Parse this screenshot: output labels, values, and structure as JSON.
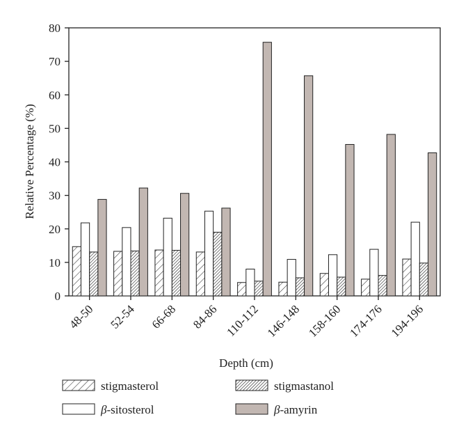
{
  "chart_data": {
    "type": "bar",
    "xlabel": "Depth (cm)",
    "ylabel": "Relative Percentage (%)",
    "ylim": [
      0,
      80
    ],
    "yticks": [
      0,
      10,
      20,
      30,
      40,
      50,
      60,
      70,
      80
    ],
    "categories": [
      "48-50",
      "52-54",
      "66-68",
      "84-86",
      "110-112",
      "146-148",
      "158-160",
      "174-176",
      "194-196"
    ],
    "series": [
      {
        "name": "stigmasterol",
        "fill": "sparse-hatch",
        "values": [
          14.7,
          13.3,
          13.7,
          13.1,
          4.0,
          4.1,
          6.7,
          5.0,
          11.0
        ]
      },
      {
        "name": "β-sitosterol",
        "fill": "white",
        "values": [
          21.8,
          20.4,
          23.2,
          25.3,
          8.0,
          10.9,
          12.3,
          13.9,
          22.0
        ]
      },
      {
        "name": "stigmastanol",
        "fill": "dense-hatch",
        "values": [
          13.1,
          13.4,
          13.6,
          19.0,
          4.4,
          5.4,
          5.6,
          6.1,
          9.8
        ]
      },
      {
        "name": "β-amyrin",
        "fill": "#c2b7b2",
        "values": [
          28.8,
          32.2,
          30.6,
          26.2,
          75.7,
          65.7,
          45.2,
          48.2,
          42.7
        ]
      }
    ],
    "legend": {
      "placement": "bottom",
      "items": [
        {
          "series": 0,
          "prefix": "",
          "label": "stigmasterol"
        },
        {
          "series": 2,
          "prefix": "",
          "label": "stigmastanol"
        },
        {
          "series": 1,
          "prefix": "β",
          "label": "-sitosterol"
        },
        {
          "series": 3,
          "prefix": "β",
          "label": "-amyrin"
        }
      ]
    },
    "grid": false
  }
}
